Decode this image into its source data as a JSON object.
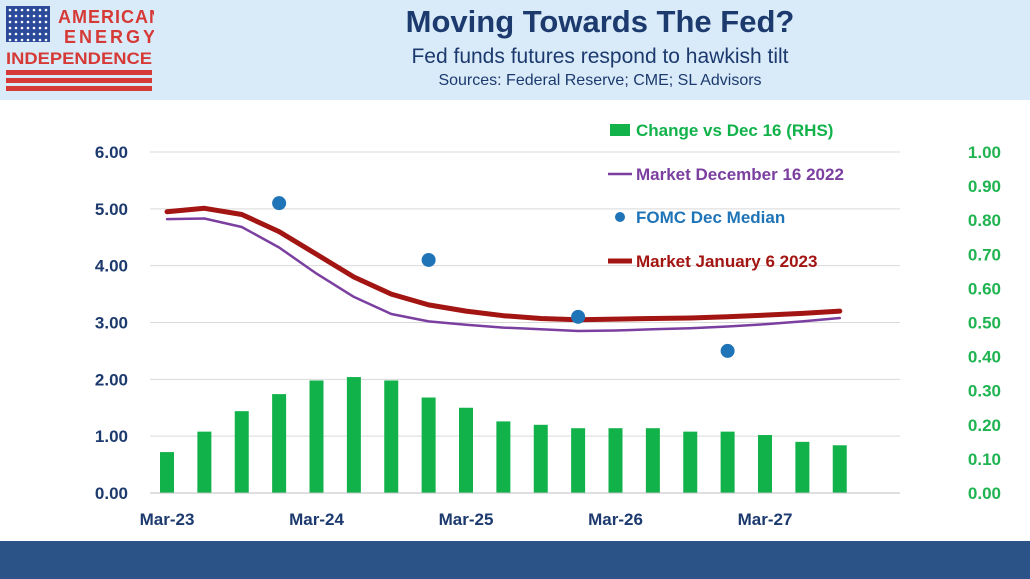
{
  "header": {
    "logo": {
      "line1": "AMERICAN",
      "line2": "ENERGY",
      "line3": "INDEPENDENCE"
    },
    "title": "Moving Towards The Fed?",
    "subtitle": "Fed funds futures respond to hawkish tilt",
    "sources": "Sources: Federal Reserve; CME; SL Advisors"
  },
  "colors": {
    "bars": "#12b24b",
    "dec16": "#7b3fa0",
    "fomc": "#1f74b8",
    "jan6": "#a31512",
    "left_axis": "#1c3a6e",
    "right_axis": "#1fb451"
  },
  "chart_data": {
    "type": "bar+line",
    "x_tick_labels": [
      "Mar-23",
      "Mar-24",
      "Mar-25",
      "Mar-26",
      "Mar-27"
    ],
    "y_left": {
      "range": [
        0,
        6
      ],
      "ticks": [
        "0.00",
        "1.00",
        "2.00",
        "3.00",
        "4.00",
        "5.00",
        "6.00"
      ]
    },
    "y_right": {
      "range": [
        0,
        1
      ],
      "ticks": [
        "0.00",
        "0.10",
        "0.20",
        "0.30",
        "0.40",
        "0.50",
        "0.60",
        "0.70",
        "0.80",
        "0.90",
        "1.00"
      ]
    },
    "grid": "horizontal",
    "legend_position": "top-right",
    "series": [
      {
        "name": "Change vs Dec 16 (RHS)",
        "type": "bar",
        "axis": "right",
        "points": [
          [
            "2023-03",
            0.12
          ],
          [
            "2023-06",
            0.18
          ],
          [
            "2023-09",
            0.24
          ],
          [
            "2023-12",
            0.29
          ],
          [
            "2024-03",
            0.33
          ],
          [
            "2024-06",
            0.34
          ],
          [
            "2024-09",
            0.33
          ],
          [
            "2024-12",
            0.28
          ],
          [
            "2025-03",
            0.25
          ],
          [
            "2025-06",
            0.21
          ],
          [
            "2025-09",
            0.2
          ],
          [
            "2025-12",
            0.19
          ],
          [
            "2026-03",
            0.19
          ],
          [
            "2026-06",
            0.19
          ],
          [
            "2026-09",
            0.18
          ],
          [
            "2026-12",
            0.18
          ],
          [
            "2027-03",
            0.17
          ],
          [
            "2027-06",
            0.15
          ],
          [
            "2027-09",
            0.14
          ]
        ]
      },
      {
        "name": "Market December 16 2022",
        "type": "line",
        "axis": "left",
        "points": [
          [
            "2023-03",
            4.82
          ],
          [
            "2023-06",
            4.83
          ],
          [
            "2023-09",
            4.68
          ],
          [
            "2023-12",
            4.32
          ],
          [
            "2024-03",
            3.86
          ],
          [
            "2024-06",
            3.45
          ],
          [
            "2024-09",
            3.15
          ],
          [
            "2024-12",
            3.02
          ],
          [
            "2025-03",
            2.96
          ],
          [
            "2025-06",
            2.91
          ],
          [
            "2025-09",
            2.88
          ],
          [
            "2025-12",
            2.85
          ],
          [
            "2026-03",
            2.86
          ],
          [
            "2026-06",
            2.88
          ],
          [
            "2026-09",
            2.9
          ],
          [
            "2026-12",
            2.93
          ],
          [
            "2027-03",
            2.97
          ],
          [
            "2027-06",
            3.02
          ],
          [
            "2027-09",
            3.08
          ]
        ]
      },
      {
        "name": "FOMC Dec  Median",
        "type": "scatter",
        "axis": "left",
        "points": [
          [
            "2023-12",
            5.1
          ],
          [
            "2024-12",
            4.1
          ],
          [
            "2025-12",
            3.1
          ],
          [
            "2026-12",
            2.5
          ]
        ]
      },
      {
        "name": "Market January 6 2023",
        "type": "line",
        "axis": "left",
        "points": [
          [
            "2023-03",
            4.95
          ],
          [
            "2023-06",
            5.01
          ],
          [
            "2023-09",
            4.9
          ],
          [
            "2023-12",
            4.6
          ],
          [
            "2024-03",
            4.2
          ],
          [
            "2024-06",
            3.8
          ],
          [
            "2024-09",
            3.5
          ],
          [
            "2024-12",
            3.31
          ],
          [
            "2025-03",
            3.2
          ],
          [
            "2025-06",
            3.12
          ],
          [
            "2025-09",
            3.07
          ],
          [
            "2025-12",
            3.05
          ],
          [
            "2026-03",
            3.06
          ],
          [
            "2026-06",
            3.07
          ],
          [
            "2026-09",
            3.08
          ],
          [
            "2026-12",
            3.1
          ],
          [
            "2027-03",
            3.13
          ],
          [
            "2027-06",
            3.16
          ],
          [
            "2027-09",
            3.2
          ]
        ]
      }
    ]
  }
}
